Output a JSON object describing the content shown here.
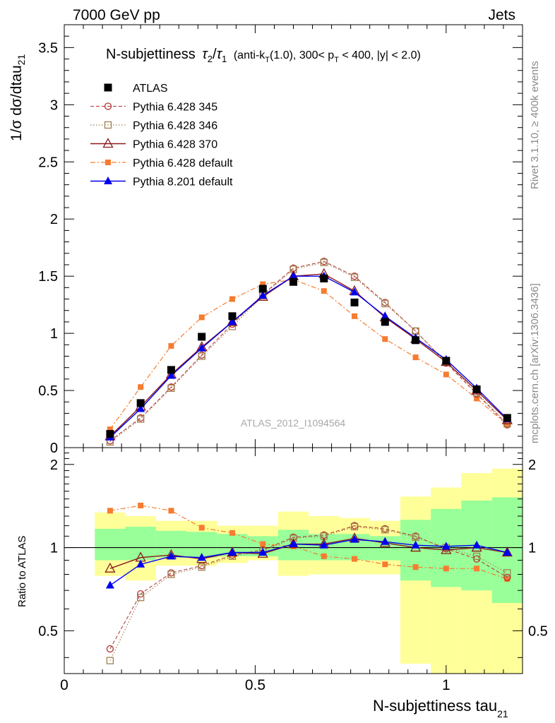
{
  "header": {
    "left": "7000 GeV pp",
    "right": "Jets"
  },
  "title": {
    "main": "N-subjettiness",
    "tau2": "τ",
    "tau2_sub": "2",
    "slash": "/",
    "tau1": "τ",
    "tau1_sub": "1",
    "cut_a": "(anti-k",
    "cut_a_sub": "T",
    "cut_b": "(1.0), 300< p",
    "cut_b_sub": "T",
    "cut_c": " < 400, |y| < 2.0)"
  },
  "axes": {
    "ylabel_main": "1/σ dσ/dtau",
    "ylabel_main_sub": "21",
    "ylabel_ratio": "Ratio to ATLAS",
    "xlabel": "N-subjettiness tau",
    "xlabel_sub": "21"
  },
  "side_labels": {
    "rivet": "Rivet 3.1.10, ≥ 400k events",
    "mcplots": "mcplots.cern.ch [arXiv:1306.3436]"
  },
  "analysis_label": "ATLAS_2012_I1094564",
  "colors": {
    "atlas": "#000000",
    "p345": "#b03030",
    "p346": "#a08050",
    "p370": "#8b1a1a",
    "p6def": "#f57c30",
    "p8def": "#0000ee",
    "band_yellow": "#ffff99",
    "band_green": "#99ff99"
  },
  "chart_data": [
    {
      "panel": "main",
      "type": "line",
      "xlim": [
        0,
        1.2
      ],
      "ylim": [
        0,
        3.7
      ],
      "x_ticks": [
        "0",
        "0.5",
        "1"
      ],
      "y_ticks": [
        "0",
        "0.5",
        "1",
        "1.5",
        "2",
        "2.5",
        "3",
        "3.5"
      ],
      "x": [
        0.12,
        0.2,
        0.28,
        0.36,
        0.44,
        0.52,
        0.6,
        0.68,
        0.76,
        0.84,
        0.92,
        1.0,
        1.08,
        1.16
      ],
      "series": [
        {
          "name": "ATLAS",
          "key": "atlas",
          "values": [
            0.12,
            0.39,
            0.68,
            0.97,
            1.15,
            1.39,
            1.45,
            1.48,
            1.27,
            1.1,
            0.94,
            0.76,
            0.51,
            0.26
          ]
        },
        {
          "name": "Pythia 6.428 345",
          "key": "p345",
          "values": [
            0.06,
            0.26,
            0.53,
            0.81,
            1.08,
            1.34,
            1.57,
            1.63,
            1.5,
            1.27,
            1.02,
            0.74,
            0.47,
            0.2
          ]
        },
        {
          "name": "Pythia 6.428 346",
          "key": "p346",
          "values": [
            0.05,
            0.25,
            0.52,
            0.8,
            1.06,
            1.33,
            1.56,
            1.62,
            1.49,
            1.26,
            1.02,
            0.75,
            0.48,
            0.21
          ]
        },
        {
          "name": "Pythia 6.428 370",
          "key": "p370",
          "values": [
            0.1,
            0.36,
            0.64,
            0.88,
            1.1,
            1.32,
            1.5,
            1.52,
            1.37,
            1.14,
            0.95,
            0.75,
            0.5,
            0.24
          ]
        },
        {
          "name": "Pythia 6.428 default",
          "key": "p6def",
          "values": [
            0.16,
            0.53,
            0.89,
            1.14,
            1.3,
            1.43,
            1.47,
            1.37,
            1.15,
            0.95,
            0.79,
            0.64,
            0.43,
            0.2
          ]
        },
        {
          "name": "Pythia 8.201 default",
          "key": "p8def",
          "values": [
            0.09,
            0.34,
            0.63,
            0.87,
            1.1,
            1.33,
            1.5,
            1.5,
            1.36,
            1.15,
            0.96,
            0.77,
            0.52,
            0.25
          ]
        }
      ]
    },
    {
      "panel": "ratio",
      "type": "line",
      "xlim": [
        0,
        1.2
      ],
      "ylim": [
        0.35,
        2.3
      ],
      "y_ticks": [
        "0.5",
        "1",
        "2"
      ],
      "bins": [
        [
          0.08,
          0.16
        ],
        [
          0.16,
          0.24
        ],
        [
          0.24,
          0.32
        ],
        [
          0.32,
          0.4
        ],
        [
          0.4,
          0.48
        ],
        [
          0.48,
          0.56
        ],
        [
          0.56,
          0.64
        ],
        [
          0.64,
          0.72
        ],
        [
          0.72,
          0.8
        ],
        [
          0.8,
          0.88
        ],
        [
          0.88,
          0.96
        ],
        [
          0.96,
          1.04
        ],
        [
          1.04,
          1.12
        ],
        [
          1.12,
          1.2
        ]
      ],
      "band_yellow": [
        [
          0.79,
          1.34
        ],
        [
          0.76,
          1.3
        ],
        [
          0.86,
          1.25
        ],
        [
          0.86,
          1.25
        ],
        [
          0.88,
          1.2
        ],
        [
          0.9,
          1.2
        ],
        [
          0.79,
          1.35
        ],
        [
          0.8,
          1.3
        ],
        [
          0.8,
          1.28
        ],
        [
          0.8,
          1.25
        ],
        [
          0.38,
          1.53
        ],
        [
          0.35,
          1.65
        ],
        [
          0.3,
          1.86
        ],
        [
          0.3,
          1.93
        ]
      ],
      "band_green": [
        [
          0.9,
          1.17
        ],
        [
          0.9,
          1.19
        ],
        [
          0.92,
          1.15
        ],
        [
          0.92,
          1.14
        ],
        [
          0.93,
          1.12
        ],
        [
          0.93,
          1.1
        ],
        [
          0.9,
          1.16
        ],
        [
          0.9,
          1.12
        ],
        [
          0.9,
          1.12
        ],
        [
          0.9,
          1.1
        ],
        [
          0.76,
          1.26
        ],
        [
          0.72,
          1.38
        ],
        [
          0.7,
          1.48
        ],
        [
          0.63,
          1.52
        ]
      ],
      "x": [
        0.12,
        0.2,
        0.28,
        0.36,
        0.44,
        0.52,
        0.6,
        0.68,
        0.76,
        0.84,
        0.92,
        1.0,
        1.08,
        1.16
      ],
      "series": [
        {
          "name": "Pythia 6.428 345",
          "key": "p345",
          "values": [
            0.43,
            0.68,
            0.81,
            0.86,
            0.94,
            0.98,
            1.09,
            1.11,
            1.2,
            1.17,
            1.1,
            0.99,
            0.91,
            0.78
          ]
        },
        {
          "name": "Pythia 6.428 346",
          "key": "p346",
          "values": [
            0.39,
            0.66,
            0.8,
            0.85,
            0.93,
            0.97,
            1.08,
            1.1,
            1.19,
            1.16,
            1.09,
            1.0,
            0.93,
            0.81
          ]
        },
        {
          "name": "Pythia 6.428 370",
          "key": "p370",
          "values": [
            0.84,
            0.92,
            0.94,
            0.91,
            0.96,
            0.95,
            1.03,
            1.03,
            1.08,
            1.04,
            1.0,
            0.98,
            1.0,
            0.96
          ]
        },
        {
          "name": "Pythia 6.428 default",
          "key": "p6def",
          "values": [
            1.36,
            1.42,
            1.36,
            1.18,
            1.13,
            1.03,
            1.01,
            0.93,
            0.91,
            0.87,
            0.85,
            0.84,
            0.84,
            0.77
          ]
        },
        {
          "name": "Pythia 8.201 default",
          "key": "p8def",
          "values": [
            0.73,
            0.87,
            0.93,
            0.92,
            0.96,
            0.96,
            1.03,
            1.02,
            1.07,
            1.05,
            1.02,
            1.01,
            1.02,
            0.96
          ]
        }
      ]
    }
  ]
}
